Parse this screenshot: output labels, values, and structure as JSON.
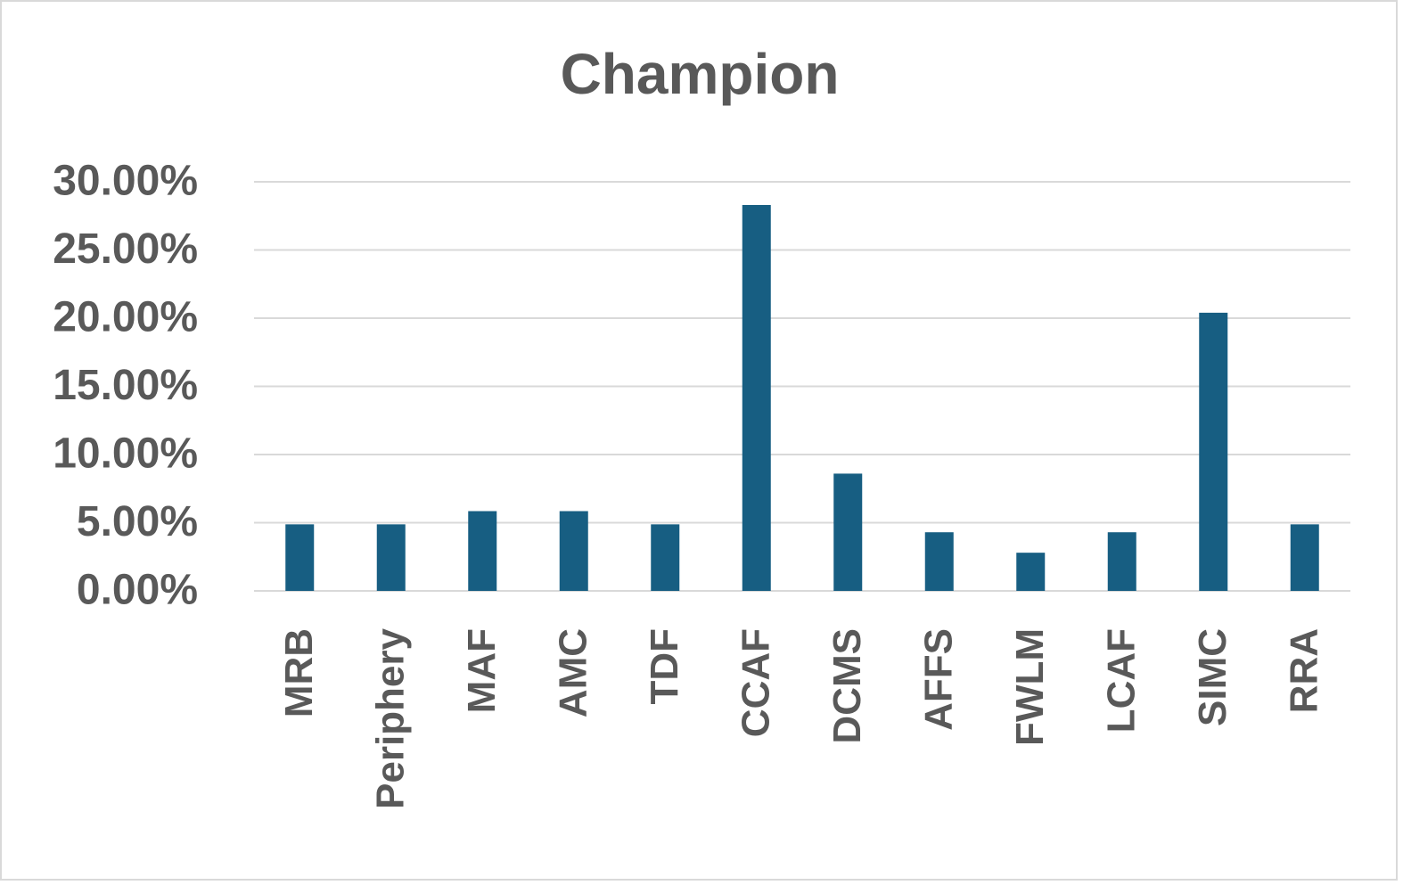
{
  "chart_data": {
    "type": "bar",
    "title": "Champion",
    "categories": [
      "MRB",
      "Periphery",
      "MAF",
      "AMC",
      "TDF",
      "CCAF",
      "DCMS",
      "AFFS",
      "FWLM",
      "LCAF",
      "SIMC",
      "RRA"
    ],
    "values": [
      4.88,
      4.88,
      5.85,
      5.85,
      4.88,
      28.3,
      8.6,
      4.3,
      2.8,
      4.3,
      20.4,
      4.88
    ],
    "color": "#175e82",
    "ylim": [
      0,
      30
    ],
    "yticks": [
      {
        "value": 0,
        "label": "0.00%"
      },
      {
        "value": 5,
        "label": "5.00%"
      },
      {
        "value": 10,
        "label": "10.00%"
      },
      {
        "value": 15,
        "label": "15.00%"
      },
      {
        "value": 20,
        "label": "20.00%"
      },
      {
        "value": 25,
        "label": "25.00%"
      },
      {
        "value": 30,
        "label": "30.00%"
      }
    ],
    "grid": true
  }
}
